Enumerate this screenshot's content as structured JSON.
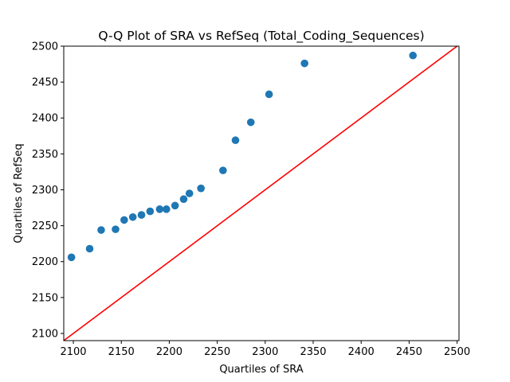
{
  "chart_data": {
    "type": "scatter",
    "title": "Q-Q Plot of SRA vs RefSeq (Total_Coding_Sequences)",
    "xlabel": "Quartiles of SRA",
    "ylabel": "Quartiles of RefSeq",
    "xlim": [
      2090,
      2502
    ],
    "ylim": [
      2090,
      2500
    ],
    "xticks": [
      2100,
      2150,
      2200,
      2250,
      2300,
      2350,
      2400,
      2450,
      2500
    ],
    "yticks": [
      2100,
      2150,
      2200,
      2250,
      2300,
      2350,
      2400,
      2450,
      2500
    ],
    "grid": false,
    "colors": {
      "points": "#1f77b4",
      "reference_line": "#ff0000",
      "axes": "#000000"
    },
    "points": [
      {
        "x": 2098,
        "y": 2206
      },
      {
        "x": 2117,
        "y": 2218
      },
      {
        "x": 2129,
        "y": 2244
      },
      {
        "x": 2144,
        "y": 2245
      },
      {
        "x": 2153,
        "y": 2258
      },
      {
        "x": 2162,
        "y": 2262
      },
      {
        "x": 2171,
        "y": 2265
      },
      {
        "x": 2180,
        "y": 2270
      },
      {
        "x": 2190,
        "y": 2273
      },
      {
        "x": 2197,
        "y": 2273
      },
      {
        "x": 2206,
        "y": 2278
      },
      {
        "x": 2215,
        "y": 2287
      },
      {
        "x": 2221,
        "y": 2295
      },
      {
        "x": 2233,
        "y": 2302
      },
      {
        "x": 2256,
        "y": 2327
      },
      {
        "x": 2269,
        "y": 2369
      },
      {
        "x": 2285,
        "y": 2394
      },
      {
        "x": 2304,
        "y": 2433
      },
      {
        "x": 2341,
        "y": 2476
      },
      {
        "x": 2454,
        "y": 2487
      }
    ],
    "reference_line": {
      "from": [
        2090,
        2090
      ],
      "to": [
        2502,
        2502
      ]
    }
  }
}
